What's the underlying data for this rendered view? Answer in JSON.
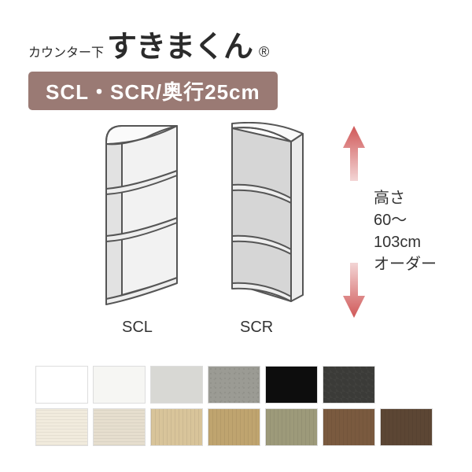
{
  "brand": {
    "prefix": "カウンター下",
    "main": "すきまくん",
    "registered": "®"
  },
  "badge": "SCL・SCR/奥行25cm",
  "shelves": {
    "scl": {
      "label": "SCL"
    },
    "scr": {
      "label": "SCR"
    }
  },
  "height": {
    "line1": "高さ",
    "line2": "60～103cm",
    "line3": "オーダー"
  },
  "arrow_color_top": "#e28a8a",
  "arrow_color_mid": "#d05858",
  "swatches": {
    "row1": [
      {
        "color": "#ffffff",
        "texture": ""
      },
      {
        "color": "#f6f6f3",
        "texture": ""
      },
      {
        "color": "#d8d8d4",
        "texture": ""
      },
      {
        "color": "#9b9b94",
        "texture": "tx-concrete"
      },
      {
        "color": "#0d0d0d",
        "texture": ""
      },
      {
        "color": "#3b3b38",
        "texture": "tx-dark"
      }
    ],
    "row2": [
      {
        "color": "#f1ebdd",
        "texture": "tx-wood-h"
      },
      {
        "color": "#e6dece",
        "texture": "tx-wood-h"
      },
      {
        "color": "#d8c49a",
        "texture": "tx-wood-v"
      },
      {
        "color": "#bfa46f",
        "texture": "tx-wood-v"
      },
      {
        "color": "#9d9a7a",
        "texture": "tx-wood-v"
      },
      {
        "color": "#7a5a3f",
        "texture": "tx-wood-v"
      },
      {
        "color": "#5c4634",
        "texture": "tx-wood-v"
      }
    ]
  },
  "shelf_stroke": "#555555",
  "shelf_fill_light": "#f7f7f7",
  "shelf_fill_side": "#e2e2e2",
  "shelf_fill_inner": "#cfcfcf"
}
